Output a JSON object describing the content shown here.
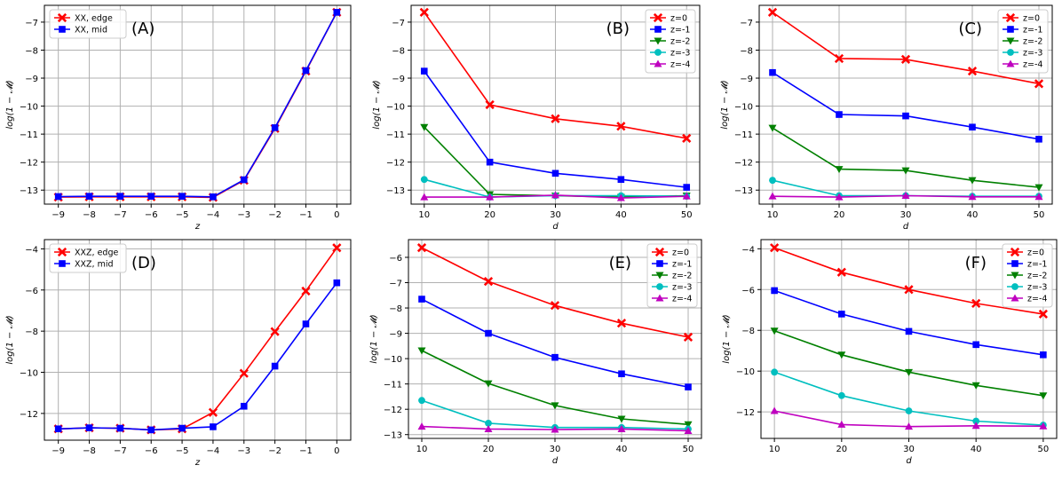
{
  "chart_data": [
    {
      "id": "A",
      "type": "line",
      "panel_label": "(A)",
      "xlabel": "z",
      "ylabel": "log(1 − 𝓜)",
      "xlim": [
        -9.45,
        0.45
      ],
      "ylim": [
        -13.5,
        -6.4
      ],
      "xticks": [
        -9,
        -8,
        -7,
        -6,
        -5,
        -4,
        -3,
        -2,
        -1,
        0
      ],
      "yticks": [
        -13,
        -12,
        -11,
        -10,
        -9,
        -8,
        -7
      ],
      "grid": true,
      "legend_position": "top-left",
      "series": [
        {
          "name": "XX, edge",
          "color": "#ff0000",
          "marker": "x",
          "x": [
            -9,
            -8,
            -7,
            -6,
            -5,
            -4,
            -3,
            -2,
            -1,
            0
          ],
          "y": [
            -13.25,
            -13.24,
            -13.24,
            -13.24,
            -13.24,
            -13.26,
            -12.65,
            -10.8,
            -8.75,
            -6.65
          ]
        },
        {
          "name": "XX, mid",
          "color": "#0000ff",
          "marker": "s",
          "x": [
            -9,
            -8,
            -7,
            -6,
            -5,
            -4,
            -3,
            -2,
            -1,
            0
          ],
          "y": [
            -13.23,
            -13.22,
            -13.22,
            -13.22,
            -13.22,
            -13.24,
            -12.63,
            -10.77,
            -8.73,
            -6.65
          ]
        }
      ]
    },
    {
      "id": "B",
      "type": "line",
      "panel_label": "(B)",
      "xlabel": "d",
      "ylabel": "log(1 − 𝓜)",
      "xlim": [
        8,
        52
      ],
      "ylim": [
        -13.5,
        -6.4
      ],
      "xticks": [
        10,
        20,
        30,
        40,
        50
      ],
      "yticks": [
        -13,
        -12,
        -11,
        -10,
        -9,
        -8,
        -7
      ],
      "grid": true,
      "legend_position": "top-right",
      "series": [
        {
          "name": "z=0",
          "color": "#ff0000",
          "marker": "x",
          "x": [
            10,
            20,
            30,
            40,
            50
          ],
          "y": [
            -6.65,
            -9.95,
            -10.45,
            -10.72,
            -11.15
          ]
        },
        {
          "name": "z=-1",
          "color": "#0000ff",
          "marker": "s",
          "x": [
            10,
            20,
            30,
            40,
            50
          ],
          "y": [
            -8.75,
            -12.0,
            -12.4,
            -12.62,
            -12.9
          ]
        },
        {
          "name": "z=-2",
          "color": "#008000",
          "marker": "v",
          "x": [
            10,
            20,
            30,
            40,
            50
          ],
          "y": [
            -10.75,
            -13.15,
            -13.2,
            -13.25,
            -13.2
          ]
        },
        {
          "name": "z=-3",
          "color": "#00bfbf",
          "marker": "o",
          "x": [
            10,
            20,
            30,
            40,
            50
          ],
          "y": [
            -12.62,
            -13.25,
            -13.2,
            -13.2,
            -13.22
          ]
        },
        {
          "name": "z=-4",
          "color": "#bf00bf",
          "marker": "^",
          "x": [
            10,
            20,
            30,
            40,
            50
          ],
          "y": [
            -13.25,
            -13.25,
            -13.18,
            -13.28,
            -13.22
          ]
        }
      ]
    },
    {
      "id": "C",
      "type": "line",
      "panel_label": "(C)",
      "xlabel": "d",
      "ylabel": "log(1 − 𝓜)",
      "xlim": [
        8,
        52
      ],
      "ylim": [
        -13.5,
        -6.4
      ],
      "xticks": [
        10,
        20,
        30,
        40,
        50
      ],
      "yticks": [
        -13,
        -12,
        -11,
        -10,
        -9,
        -8,
        -7
      ],
      "grid": true,
      "legend_position": "top-right",
      "series": [
        {
          "name": "z=0",
          "color": "#ff0000",
          "marker": "x",
          "x": [
            10,
            20,
            30,
            40,
            50
          ],
          "y": [
            -6.65,
            -8.3,
            -8.33,
            -8.75,
            -9.2
          ]
        },
        {
          "name": "z=-1",
          "color": "#0000ff",
          "marker": "s",
          "x": [
            10,
            20,
            30,
            40,
            50
          ],
          "y": [
            -8.8,
            -10.3,
            -10.35,
            -10.75,
            -11.18
          ]
        },
        {
          "name": "z=-2",
          "color": "#008000",
          "marker": "v",
          "x": [
            10,
            20,
            30,
            40,
            50
          ],
          "y": [
            -10.78,
            -12.25,
            -12.3,
            -12.65,
            -12.9
          ]
        },
        {
          "name": "z=-3",
          "color": "#00bfbf",
          "marker": "o",
          "x": [
            10,
            20,
            30,
            40,
            50
          ],
          "y": [
            -12.65,
            -13.2,
            -13.2,
            -13.22,
            -13.22
          ]
        },
        {
          "name": "z=-4",
          "color": "#bf00bf",
          "marker": "^",
          "x": [
            10,
            20,
            30,
            40,
            50
          ],
          "y": [
            -13.22,
            -13.25,
            -13.2,
            -13.24,
            -13.24
          ]
        }
      ]
    },
    {
      "id": "D",
      "type": "line",
      "panel_label": "(D)",
      "xlabel": "z",
      "ylabel": "log(1 − 𝓜)",
      "xlim": [
        -9.45,
        0.45
      ],
      "ylim": [
        -13.3,
        -3.55
      ],
      "xticks": [
        -9,
        -8,
        -7,
        -6,
        -5,
        -4,
        -3,
        -2,
        -1,
        0
      ],
      "yticks": [
        -12,
        -10,
        -8,
        -6,
        -4
      ],
      "grid": true,
      "legend_position": "top-left",
      "series": [
        {
          "name": "XXZ, edge",
          "color": "#ff0000",
          "marker": "x",
          "x": [
            -9,
            -8,
            -7,
            -6,
            -5,
            -4,
            -3,
            -2,
            -1,
            0
          ],
          "y": [
            -12.75,
            -12.7,
            -12.72,
            -12.8,
            -12.75,
            -11.95,
            -10.05,
            -8.02,
            -6.05,
            -3.95
          ]
        },
        {
          "name": "XXZ, mid",
          "color": "#0000ff",
          "marker": "s",
          "x": [
            -9,
            -8,
            -7,
            -6,
            -5,
            -4,
            -3,
            -2,
            -1,
            0
          ],
          "y": [
            -12.75,
            -12.7,
            -12.72,
            -12.8,
            -12.72,
            -12.65,
            -11.65,
            -9.7,
            -7.65,
            -5.65
          ]
        }
      ]
    },
    {
      "id": "E",
      "type": "line",
      "panel_label": "(E)",
      "xlabel": "d",
      "ylabel": "log(1 − 𝓜)",
      "xlim": [
        8,
        52
      ],
      "ylim": [
        -13.15,
        -5.3
      ],
      "xticks": [
        10,
        20,
        30,
        40,
        50
      ],
      "yticks": [
        -13,
        -12,
        -11,
        -10,
        -9,
        -8,
        -7,
        -6
      ],
      "grid": true,
      "legend_position": "top-right",
      "series": [
        {
          "name": "z=0",
          "color": "#ff0000",
          "marker": "x",
          "x": [
            10,
            20,
            30,
            40,
            50
          ],
          "y": [
            -5.62,
            -6.95,
            -7.9,
            -8.6,
            -9.15
          ]
        },
        {
          "name": "z=-1",
          "color": "#0000ff",
          "marker": "s",
          "x": [
            10,
            20,
            30,
            40,
            50
          ],
          "y": [
            -7.65,
            -9.0,
            -9.95,
            -10.6,
            -11.12
          ]
        },
        {
          "name": "z=-2",
          "color": "#008000",
          "marker": "v",
          "x": [
            10,
            20,
            30,
            40,
            50
          ],
          "y": [
            -9.68,
            -10.98,
            -11.85,
            -12.38,
            -12.6
          ]
        },
        {
          "name": "z=-3",
          "color": "#00bfbf",
          "marker": "o",
          "x": [
            10,
            20,
            30,
            40,
            50
          ],
          "y": [
            -11.65,
            -12.55,
            -12.72,
            -12.72,
            -12.78
          ]
        },
        {
          "name": "z=-4",
          "color": "#bf00bf",
          "marker": "^",
          "x": [
            10,
            20,
            30,
            40,
            50
          ],
          "y": [
            -12.68,
            -12.78,
            -12.8,
            -12.78,
            -12.85
          ]
        }
      ]
    },
    {
      "id": "F",
      "type": "line",
      "panel_label": "(F)",
      "xlabel": "d",
      "ylabel": "log(1 − 𝓜)",
      "xlim": [
        8,
        52
      ],
      "ylim": [
        -13.3,
        -3.55
      ],
      "xticks": [
        10,
        20,
        30,
        40,
        50
      ],
      "yticks": [
        -12,
        -10,
        -8,
        -6,
        -4
      ],
      "grid": true,
      "legend_position": "top-right",
      "series": [
        {
          "name": "z=0",
          "color": "#ff0000",
          "marker": "x",
          "x": [
            10,
            20,
            30,
            40,
            50
          ],
          "y": [
            -3.95,
            -5.15,
            -6.0,
            -6.68,
            -7.2
          ]
        },
        {
          "name": "z=-1",
          "color": "#0000ff",
          "marker": "s",
          "x": [
            10,
            20,
            30,
            40,
            50
          ],
          "y": [
            -6.05,
            -7.2,
            -8.05,
            -8.7,
            -9.2
          ]
        },
        {
          "name": "z=-2",
          "color": "#008000",
          "marker": "v",
          "x": [
            10,
            20,
            30,
            40,
            50
          ],
          "y": [
            -8.02,
            -9.2,
            -10.05,
            -10.7,
            -11.2
          ]
        },
        {
          "name": "z=-3",
          "color": "#00bfbf",
          "marker": "o",
          "x": [
            10,
            20,
            30,
            40,
            50
          ],
          "y": [
            -10.05,
            -11.2,
            -11.95,
            -12.45,
            -12.65
          ]
        },
        {
          "name": "z=-4",
          "color": "#bf00bf",
          "marker": "^",
          "x": [
            10,
            20,
            30,
            40,
            50
          ],
          "y": [
            -11.95,
            -12.62,
            -12.72,
            -12.68,
            -12.7
          ]
        }
      ]
    }
  ]
}
